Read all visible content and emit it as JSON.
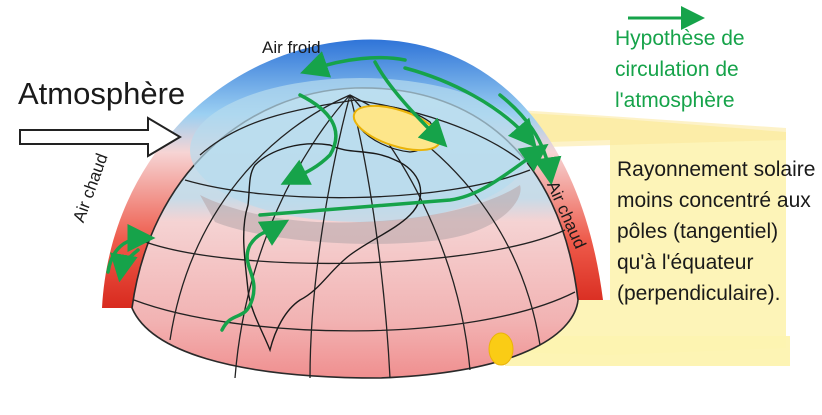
{
  "labels": {
    "atmosphere": "Atmosphère",
    "air_froid": "Air froid",
    "air_chaud_left": "Air chaud",
    "air_chaud_right": "Air chaud",
    "hypothese": "Hypothèse de circulation de l'atmosphère",
    "rayonnement": "Rayonnement solaire moins concentré aux pôles (tangentiel) qu'à l'équateur (perpendiculaire)."
  },
  "colors": {
    "circulation_arrow": "#16a34a",
    "cold_air": "#3b82f6",
    "warm_air": "#e53935",
    "sun_rays": "#fdf3b0",
    "sun_spot": "#facc15"
  }
}
